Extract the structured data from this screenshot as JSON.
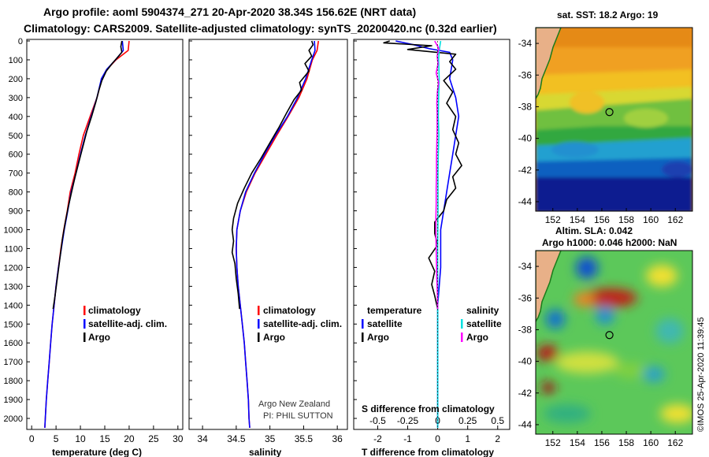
{
  "title_line1": "Argo profile: aoml 5904374_271 20-Apr-2020 38.34S 156.62E (NRT data)",
  "title_line2": "Climatology: CARS2009. Satellite-adjusted climatology: synTS_20200420.nc (0.32d earlier)",
  "colors": {
    "climatology": "#ff0000",
    "satellite": "#0000ff",
    "argo": "#000000",
    "sat_salinity": "#00e0e0",
    "argo_salinity": "#ff00ff"
  },
  "chart_data": [
    {
      "type": "line",
      "name": "temperature-panel",
      "xlabel": "temperature (deg C)",
      "ylabel": "",
      "xlim": [
        -1,
        31
      ],
      "ylim": [
        2050,
        0
      ],
      "xticks": [
        0,
        5,
        10,
        15,
        20,
        25,
        30
      ],
      "yticks": [
        0,
        100,
        200,
        300,
        400,
        500,
        600,
        700,
        800,
        900,
        1000,
        1100,
        1200,
        1300,
        1400,
        1500,
        1600,
        1700,
        1800,
        1900,
        2000
      ],
      "legend": [
        "climatology",
        "satellite-adj. clim.",
        "Argo"
      ],
      "series": [
        {
          "name": "climatology",
          "color": "#ff0000",
          "points": [
            [
              20.0,
              0
            ],
            [
              19.8,
              50
            ],
            [
              17.3,
              100
            ],
            [
              15.5,
              150
            ],
            [
              14.4,
              200
            ],
            [
              13.4,
              300
            ],
            [
              12.0,
              400
            ],
            [
              10.6,
              500
            ],
            [
              9.7,
              600
            ],
            [
              8.9,
              700
            ],
            [
              7.9,
              800
            ],
            [
              7.3,
              900
            ],
            [
              6.6,
              1000
            ],
            [
              6.0,
              1100
            ],
            [
              5.5,
              1200
            ],
            [
              5.0,
              1300
            ],
            [
              4.6,
              1400
            ],
            [
              4.2,
              1500
            ],
            [
              3.9,
              1600
            ],
            [
              3.6,
              1700
            ],
            [
              3.3,
              1800
            ],
            [
              3.0,
              1900
            ],
            [
              2.8,
              2000
            ],
            [
              2.7,
              2050
            ]
          ]
        },
        {
          "name": "satellite-adj. clim.",
          "color": "#0000ff",
          "points": [
            [
              18.6,
              0
            ],
            [
              18.8,
              50
            ],
            [
              17.2,
              100
            ],
            [
              15.4,
              150
            ],
            [
              14.3,
              200
            ],
            [
              13.4,
              300
            ],
            [
              12.2,
              400
            ],
            [
              11.0,
              500
            ],
            [
              10.0,
              600
            ],
            [
              9.1,
              700
            ],
            [
              8.1,
              800
            ],
            [
              7.4,
              900
            ],
            [
              6.7,
              1000
            ],
            [
              6.1,
              1100
            ],
            [
              5.5,
              1200
            ],
            [
              5.0,
              1300
            ],
            [
              4.6,
              1400
            ],
            [
              4.2,
              1500
            ],
            [
              3.9,
              1600
            ],
            [
              3.6,
              1700
            ],
            [
              3.3,
              1800
            ],
            [
              3.0,
              1900
            ],
            [
              2.8,
              2000
            ],
            [
              2.7,
              2050
            ]
          ]
        },
        {
          "name": "Argo",
          "color": "#000000",
          "points": [
            [
              18.5,
              0
            ],
            [
              18.3,
              30
            ],
            [
              18.5,
              60
            ],
            [
              17.5,
              90
            ],
            [
              16.5,
              120
            ],
            [
              15.3,
              160
            ],
            [
              14.4,
              210
            ],
            [
              13.8,
              260
            ],
            [
              13.2,
              320
            ],
            [
              12.3,
              400
            ],
            [
              11.3,
              480
            ],
            [
              10.5,
              560
            ],
            [
              9.7,
              640
            ],
            [
              8.9,
              720
            ],
            [
              8.2,
              800
            ],
            [
              7.5,
              880
            ],
            [
              6.9,
              960
            ],
            [
              6.3,
              1050
            ],
            [
              5.8,
              1150
            ],
            [
              5.3,
              1250
            ],
            [
              4.8,
              1350
            ],
            [
              4.4,
              1420
            ]
          ]
        }
      ]
    },
    {
      "type": "line",
      "name": "salinity-panel",
      "xlabel": "salinity",
      "ylabel": "",
      "xlim": [
        33.8,
        36.15
      ],
      "ylim": [
        2050,
        0
      ],
      "xticks": [
        34,
        34.5,
        35,
        35.5,
        36
      ],
      "tick_labels": [
        "34",
        "34.5",
        "35",
        "35.5",
        "36"
      ],
      "legend": [
        "climatology",
        "satellite-adj. clim.",
        "Argo"
      ],
      "annotation": [
        "Argo New Zealand",
        "PI: PHIL SUTTON"
      ],
      "series": [
        {
          "name": "climatology",
          "color": "#ff0000",
          "points": [
            [
              35.72,
              0
            ],
            [
              35.7,
              50
            ],
            [
              35.63,
              100
            ],
            [
              35.55,
              200
            ],
            [
              35.43,
              300
            ],
            [
              35.27,
              400
            ],
            [
              35.1,
              500
            ],
            [
              34.94,
              600
            ],
            [
              34.78,
              700
            ],
            [
              34.65,
              800
            ],
            [
              34.56,
              900
            ],
            [
              34.51,
              1000
            ],
            [
              34.5,
              1100
            ],
            [
              34.51,
              1200
            ],
            [
              34.53,
              1300
            ],
            [
              34.56,
              1400
            ],
            [
              34.59,
              1500
            ],
            [
              34.62,
              1600
            ],
            [
              34.64,
              1700
            ],
            [
              34.66,
              1800
            ],
            [
              34.68,
              1900
            ],
            [
              34.69,
              2000
            ],
            [
              34.7,
              2050
            ]
          ]
        },
        {
          "name": "satellite-adj. clim.",
          "color": "#0000ff",
          "points": [
            [
              35.66,
              0
            ],
            [
              35.67,
              50
            ],
            [
              35.62,
              100
            ],
            [
              35.53,
              200
            ],
            [
              35.41,
              300
            ],
            [
              35.26,
              400
            ],
            [
              35.08,
              500
            ],
            [
              34.92,
              600
            ],
            [
              34.77,
              700
            ],
            [
              34.64,
              800
            ],
            [
              34.56,
              900
            ],
            [
              34.51,
              1000
            ],
            [
              34.5,
              1100
            ],
            [
              34.51,
              1200
            ],
            [
              34.53,
              1300
            ],
            [
              34.56,
              1400
            ],
            [
              34.59,
              1500
            ],
            [
              34.62,
              1600
            ],
            [
              34.64,
              1700
            ],
            [
              34.66,
              1800
            ],
            [
              34.68,
              1900
            ],
            [
              34.69,
              2000
            ],
            [
              34.7,
              2050
            ]
          ]
        },
        {
          "name": "Argo",
          "color": "#000000",
          "points": [
            [
              35.62,
              0
            ],
            [
              35.64,
              20
            ],
            [
              35.58,
              50
            ],
            [
              35.62,
              80
            ],
            [
              35.52,
              120
            ],
            [
              35.58,
              160
            ],
            [
              35.44,
              220
            ],
            [
              35.47,
              260
            ],
            [
              35.36,
              310
            ],
            [
              35.25,
              380
            ],
            [
              35.13,
              460
            ],
            [
              35.0,
              540
            ],
            [
              34.87,
              620
            ],
            [
              34.73,
              700
            ],
            [
              34.62,
              780
            ],
            [
              34.52,
              860
            ],
            [
              34.46,
              940
            ],
            [
              34.44,
              1000
            ],
            [
              34.46,
              1060
            ],
            [
              34.44,
              1120
            ],
            [
              34.48,
              1180
            ],
            [
              34.5,
              1260
            ],
            [
              34.53,
              1340
            ],
            [
              34.55,
              1420
            ]
          ]
        }
      ]
    },
    {
      "type": "line",
      "name": "difference-panel",
      "xlabel": "T difference from climatology",
      "top_axis_label": "S difference from climatology",
      "xlim": [
        -2.8,
        2.4
      ],
      "ylim": [
        2050,
        0
      ],
      "xticks": [
        -2,
        -1,
        0,
        1,
        2
      ],
      "top_ticks": [
        -0.5,
        -0.25,
        0,
        0.25,
        0.5
      ],
      "top_tick_labels": [
        "-0.5",
        "-0.25",
        "0",
        "0.25",
        "0.5"
      ],
      "legend": {
        "temperature_header": "temperature",
        "salinity_header": "salinity",
        "temperature_items": [
          "satellite",
          "Argo"
        ],
        "salinity_items": [
          "satellite",
          "Argo"
        ]
      },
      "series": [
        {
          "name": "temperature-satellite",
          "color": "#0000ff",
          "points": [
            [
              -1.4,
              0
            ],
            [
              -0.8,
              20
            ],
            [
              -0.3,
              40
            ],
            [
              0.4,
              60
            ],
            [
              0.5,
              100
            ],
            [
              0.4,
              200
            ],
            [
              0.6,
              300
            ],
            [
              0.7,
              400
            ],
            [
              0.6,
              500
            ],
            [
              0.5,
              600
            ],
            [
              0.4,
              700
            ],
            [
              0.3,
              800
            ],
            [
              0.2,
              900
            ],
            [
              0.1,
              1000
            ],
            [
              0.1,
              1200
            ],
            [
              0.0,
              1400
            ],
            [
              0.0,
              1700
            ],
            [
              0.0,
              2000
            ],
            [
              0.0,
              2050
            ]
          ]
        },
        {
          "name": "temperature-Argo",
          "color": "#000000",
          "points": [
            [
              -1.6,
              0
            ],
            [
              -1.8,
              10
            ],
            [
              -0.2,
              25
            ],
            [
              -1.0,
              45
            ],
            [
              0.6,
              70
            ],
            [
              0.4,
              110
            ],
            [
              0.6,
              150
            ],
            [
              0.2,
              210
            ],
            [
              0.5,
              270
            ],
            [
              0.3,
              330
            ],
            [
              0.6,
              400
            ],
            [
              0.5,
              470
            ],
            [
              0.7,
              540
            ],
            [
              0.6,
              600
            ],
            [
              0.8,
              660
            ],
            [
              0.5,
              720
            ],
            [
              0.6,
              780
            ],
            [
              0.3,
              840
            ],
            [
              0.2,
              900
            ],
            [
              -0.1,
              960
            ],
            [
              -0.1,
              1020
            ],
            [
              0.0,
              1080
            ],
            [
              -0.3,
              1150
            ],
            [
              -0.1,
              1220
            ],
            [
              -0.2,
              1290
            ],
            [
              -0.1,
              1350
            ],
            [
              0.0,
              1420
            ]
          ]
        },
        {
          "name": "salinity-satellite",
          "color": "#00e0e0",
          "points": [
            [
              0.1,
              0
            ],
            [
              0.05,
              50
            ],
            [
              0.03,
              100
            ],
            [
              0.05,
              200
            ],
            [
              0.03,
              300
            ],
            [
              0.02,
              400
            ],
            [
              0.04,
              500
            ],
            [
              0.02,
              600
            ],
            [
              0.01,
              700
            ],
            [
              0.01,
              900
            ],
            [
              0.0,
              1100
            ],
            [
              0.0,
              1400
            ],
            [
              0.0,
              1700
            ],
            [
              0.0,
              2000
            ],
            [
              0.0,
              2050
            ]
          ]
        },
        {
          "name": "salinity-Argo",
          "color": "#ff00ff",
          "points": [
            [
              -0.1,
              0
            ],
            [
              0.04,
              40
            ],
            [
              -0.02,
              80
            ],
            [
              0.01,
              120
            ],
            [
              -0.05,
              170
            ],
            [
              0.03,
              220
            ],
            [
              -0.01,
              270
            ],
            [
              -0.03,
              330
            ],
            [
              -0.02,
              380
            ],
            [
              -0.02,
              460
            ],
            [
              -0.03,
              540
            ],
            [
              -0.04,
              620
            ],
            [
              -0.04,
              700
            ],
            [
              -0.05,
              780
            ],
            [
              -0.05,
              860
            ],
            [
              -0.06,
              940
            ],
            [
              -0.06,
              1020
            ],
            [
              -0.05,
              1100
            ],
            [
              -0.04,
              1180
            ],
            [
              -0.03,
              1260
            ],
            [
              -0.01,
              1340
            ],
            [
              0.0,
              1420
            ]
          ]
        }
      ]
    }
  ],
  "map1": {
    "title": "sat. SST: 18.2 Argo: 19",
    "lon_ticks": [
      "152",
      "154",
      "156",
      "158",
      "160",
      "162"
    ],
    "lat_ticks": [
      "-34",
      "-36",
      "-38",
      "-40",
      "-42",
      "-44"
    ],
    "marker": {
      "lon": 156.62,
      "lat": -38.34
    }
  },
  "map2": {
    "title_line1": "Altim. SLA: 0.042",
    "title_line2": "Argo h1000: 0.046 h2000: NaN",
    "lon_ticks": [
      "152",
      "154",
      "156",
      "158",
      "160",
      "162"
    ],
    "lat_ticks": [
      "-34",
      "-36",
      "-38",
      "-40",
      "-42",
      "-44"
    ],
    "marker": {
      "lon": 156.62,
      "lat": -38.34
    }
  },
  "credit": "©IMOS 25-Apr-2020 11:39:45"
}
